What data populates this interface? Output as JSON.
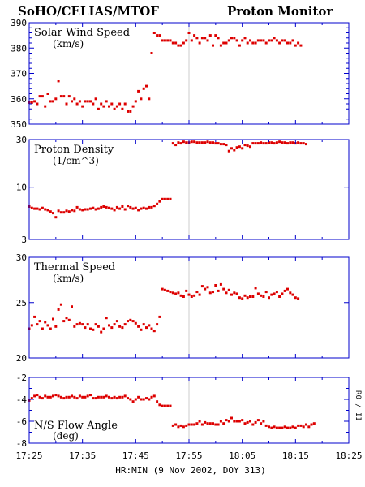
{
  "header": {
    "left_title": "SoHO/CELIAS/MTOF",
    "right_title": "Proton Monitor"
  },
  "xaxis": {
    "label": "HR:MIN (9 Nov 2002, DOY 313)",
    "tick_labels": [
      "17:25",
      "17:35",
      "17:45",
      "17:55",
      "18:05",
      "18:15",
      "18:25"
    ]
  },
  "side_label": "R0 / II",
  "event_time": "17:55",
  "chart_data": [
    {
      "type": "scatter",
      "title": "Solar Wind Speed",
      "ylabel": "(km/s)",
      "ylim": [
        350,
        390
      ],
      "yscale": "linear",
      "ytick_labels": [
        "390",
        "380",
        "370",
        "360",
        "350"
      ],
      "ytick_values": [
        390,
        380,
        370,
        360,
        350
      ],
      "xlim": [
        "17:25",
        "18:25"
      ],
      "color": "#dd0000",
      "x_start": "17:25",
      "x_step_minutes": 0.5,
      "values": [
        358.5,
        358.5,
        359,
        358,
        361,
        361,
        357,
        362,
        359,
        359,
        360,
        367,
        361,
        361,
        358,
        361,
        359,
        360,
        358,
        359,
        357,
        359,
        359,
        359,
        358,
        360,
        356,
        358,
        357,
        359,
        357,
        358,
        356,
        357,
        358,
        356,
        358,
        355,
        355,
        357,
        359,
        363,
        360,
        364,
        365,
        360,
        378,
        386,
        385,
        385,
        383,
        383,
        383,
        383,
        382,
        382,
        381,
        381,
        382,
        383,
        386,
        383,
        385,
        384,
        382,
        384,
        384,
        383,
        385,
        381,
        385,
        384,
        381,
        382,
        382,
        383,
        384,
        384,
        383,
        381,
        383,
        384,
        382,
        383,
        382,
        382,
        383,
        383,
        383,
        382,
        383,
        383,
        384,
        383,
        382,
        383,
        383,
        382,
        382,
        383,
        381,
        382,
        381
      ]
    },
    {
      "type": "scatter",
      "title": "Proton Density",
      "ylabel": "(1/cm^3)",
      "ylim": [
        3,
        30
      ],
      "yscale": "log",
      "ytick_labels": [
        "30",
        "10",
        "3"
      ],
      "ytick_values": [
        30,
        10,
        3
      ],
      "xlim": [
        "17:25",
        "18:25"
      ],
      "color": "#dd0000",
      "x_start": "17:25",
      "x_step_minutes": 0.5,
      "values": [
        6.4,
        6.2,
        6.1,
        6.1,
        6.0,
        6.2,
        6.0,
        5.9,
        5.7,
        5.5,
        5.0,
        5.8,
        5.6,
        5.6,
        5.8,
        5.7,
        5.9,
        5.8,
        6.3,
        6.0,
        5.9,
        6.0,
        6.0,
        6.1,
        6.2,
        6.0,
        6.1,
        6.3,
        6.4,
        6.3,
        6.2,
        6.1,
        5.9,
        6.3,
        6.1,
        6.4,
        6.0,
        6.5,
        6.3,
        6.1,
        6.2,
        5.9,
        6.1,
        6.2,
        6.1,
        6.3,
        6.3,
        6.5,
        6.8,
        7.2,
        7.6,
        7.6,
        7.6,
        7.6,
        27.5,
        26.5,
        28.0,
        27.5,
        28.5,
        28.0,
        28.0,
        28.5,
        28.5,
        28.0,
        28.0,
        28.0,
        28.0,
        28.5,
        28.0,
        28.0,
        27.5,
        27.5,
        27.0,
        27.0,
        26.5,
        23.0,
        24.5,
        23.5,
        25.0,
        25.5,
        24.5,
        26.5,
        26.0,
        25.5,
        27.5,
        27.5,
        27.5,
        28.0,
        27.5,
        27.5,
        28.0,
        28.0,
        27.5,
        28.0,
        28.5,
        28.0,
        28.0,
        27.5,
        28.0,
        28.0,
        27.5,
        28.0,
        27.5,
        27.5,
        27.0
      ]
    },
    {
      "type": "scatter",
      "title": "Thermal Speed",
      "ylabel": "(km/s)",
      "ylim": [
        20,
        30
      ],
      "yscale": "log",
      "ytick_labels": [
        "30",
        "25",
        "20"
      ],
      "ytick_values": [
        30,
        25,
        20
      ],
      "xlim": [
        "17:25",
        "18:25"
      ],
      "color": "#dd0000",
      "x_start": "17:25",
      "x_step_minutes": 0.5,
      "values": [
        22.5,
        22.8,
        23.6,
        22.9,
        23.2,
        22.5,
        23.1,
        22.8,
        22.5,
        23.4,
        22.7,
        24.3,
        24.8,
        23.2,
        23.5,
        23.3,
        24.6,
        22.7,
        22.9,
        23.0,
        22.9,
        22.6,
        22.9,
        22.5,
        22.4,
        22.9,
        22.7,
        22.2,
        22.5,
        23.5,
        22.8,
        22.6,
        22.9,
        23.2,
        22.7,
        22.6,
        22.9,
        23.2,
        23.3,
        23.2,
        23.0,
        22.7,
        22.4,
        22.9,
        22.6,
        22.8,
        22.5,
        22.3,
        22.9,
        23.6,
        26.4,
        26.3,
        26.2,
        26.1,
        26.0,
        25.9,
        26.0,
        25.7,
        25.6,
        26.2,
        25.8,
        25.6,
        25.7,
        26.1,
        25.8,
        26.7,
        26.4,
        26.6,
        26.0,
        26.1,
        26.8,
        26.2,
        26.9,
        26.4,
        26.0,
        26.3,
        25.8,
        26.0,
        25.9,
        25.5,
        25.4,
        25.7,
        25.5,
        25.6,
        25.6,
        26.5,
        25.9,
        25.7,
        25.6,
        26.1,
        25.5,
        25.8,
        25.9,
        26.1,
        25.6,
        25.9,
        26.2,
        26.4,
        26.0,
        25.8,
        25.5,
        25.4
      ]
    },
    {
      "type": "scatter",
      "title": "N/S Flow Angle",
      "ylabel": "(deg)",
      "ylim": [
        -8,
        -2
      ],
      "yscale": "linear",
      "ytick_labels": [
        "-2",
        "-4",
        "-6",
        "-8"
      ],
      "ytick_values": [
        -2,
        -4,
        -6,
        -8
      ],
      "xlim": [
        "17:25",
        "18:25"
      ],
      "color": "#dd0000",
      "x_start": "17:25",
      "x_step_minutes": 0.5,
      "values": [
        -4.1,
        -3.9,
        -3.7,
        -3.6,
        -3.8,
        -3.9,
        -3.7,
        -3.8,
        -3.8,
        -3.7,
        -3.6,
        -3.7,
        -3.8,
        -3.9,
        -3.8,
        -3.8,
        -3.7,
        -3.8,
        -3.9,
        -3.7,
        -3.8,
        -3.8,
        -3.7,
        -3.6,
        -3.9,
        -3.9,
        -3.8,
        -3.8,
        -3.8,
        -3.7,
        -3.8,
        -3.9,
        -3.8,
        -3.9,
        -3.8,
        -3.8,
        -3.7,
        -3.9,
        -4.0,
        -4.2,
        -4.0,
        -3.8,
        -4.0,
        -4.0,
        -3.9,
        -4.0,
        -3.8,
        -3.7,
        -4.2,
        -4.5,
        -4.6,
        -4.6,
        -4.6,
        -4.6,
        -6.4,
        -6.3,
        -6.5,
        -6.4,
        -6.5,
        -6.4,
        -6.3,
        -6.3,
        -6.3,
        -6.2,
        -6.0,
        -6.3,
        -6.1,
        -6.2,
        -6.2,
        -6.2,
        -6.3,
        -6.3,
        -6.0,
        -6.2,
        -5.9,
        -6.0,
        -5.7,
        -6.0,
        -6.0,
        -6.0,
        -5.9,
        -6.2,
        -6.1,
        -6.0,
        -6.3,
        -6.1,
        -5.9,
        -6.2,
        -6.0,
        -6.4,
        -6.5,
        -6.6,
        -6.5,
        -6.6,
        -6.6,
        -6.6,
        -6.5,
        -6.6,
        -6.6,
        -6.5,
        -6.6,
        -6.4,
        -6.4,
        -6.5,
        -6.3,
        -6.5,
        -6.3,
        -6.2
      ]
    }
  ]
}
